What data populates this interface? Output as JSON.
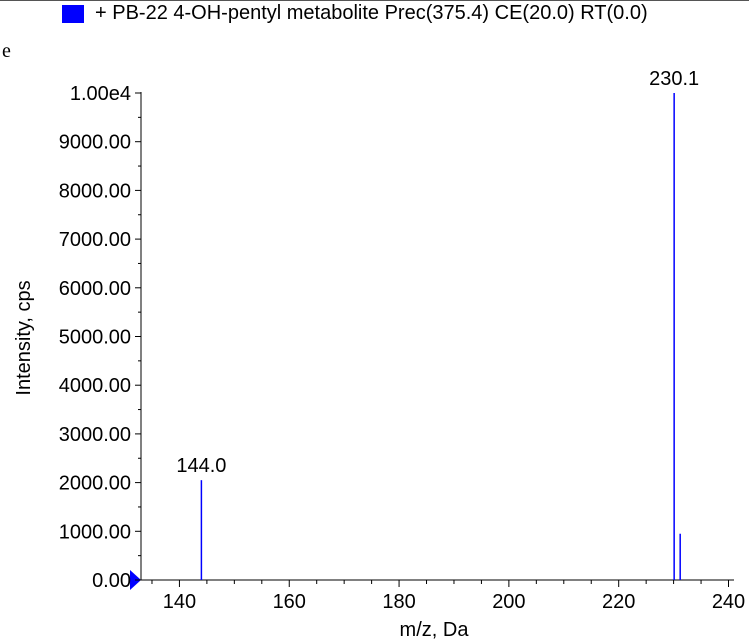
{
  "header": {
    "legend_label": "+ PB-22 4-OH-pentyl metabolite Prec(375.4) CE(20.0) RT(0.0)",
    "stray_glyph": "e"
  },
  "colors": {
    "series": "#0000ff",
    "swatch": "#0000ff",
    "axis": "#000000"
  },
  "chart_data": {
    "type": "bar",
    "title": "",
    "xlabel": "m/z, Da",
    "ylabel": "Intensity, cps",
    "xlim": [
      133,
      241
    ],
    "ylim": [
      0,
      10000
    ],
    "x_ticks": [
      140,
      160,
      180,
      200,
      220,
      240
    ],
    "x_tick_labels": [
      "140",
      "160",
      "180",
      "200",
      "220",
      "240"
    ],
    "y_ticks": [
      0,
      1000,
      2000,
      3000,
      4000,
      5000,
      6000,
      7000,
      8000,
      9000,
      10000
    ],
    "y_tick_labels": [
      "0.00",
      "1000.00",
      "2000.00",
      "3000.00",
      "4000.00",
      "5000.00",
      "6000.00",
      "7000.00",
      "8000.00",
      "9000.00",
      "1.00e4"
    ],
    "grid": false,
    "peaks": [
      {
        "mz": 144.0,
        "intensity": 2050,
        "label": "144.0"
      },
      {
        "mz": 230.1,
        "intensity": 10000,
        "label": "230.1"
      },
      {
        "mz": 231.2,
        "intensity": 950,
        "label": ""
      }
    ]
  }
}
